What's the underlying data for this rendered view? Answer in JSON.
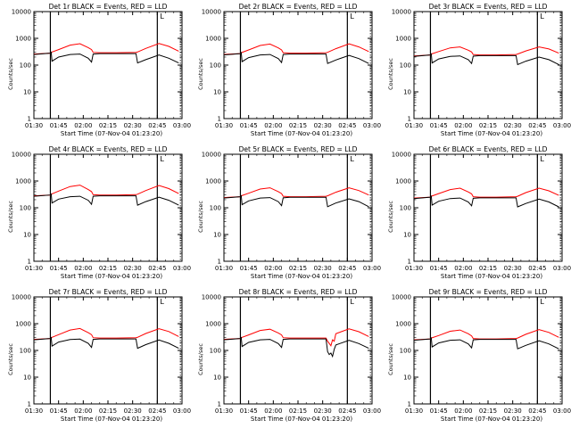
{
  "figure": {
    "xtick_labels": [
      "01:30",
      "01:45",
      "02:00",
      "02:15",
      "02:30",
      "02:45",
      "03:00"
    ],
    "ytick_labels": [
      "1",
      "10",
      "100",
      "1000",
      "10000"
    ],
    "ylabel": "Counts/sec",
    "xlabel": "Start Time (07-Nov-04 01:23:20)",
    "colors": {
      "events": "#000000",
      "lld": "#ff0000",
      "axes": "#000000",
      "background": "#ffffff"
    }
  },
  "chart_data": [
    {
      "type": "line",
      "title": "Det 1r BLACK = Events, RED = LLD",
      "flag": "L",
      "x_unit": "minutes after 01:30",
      "xlim": [
        0,
        90
      ],
      "ylim": [
        1,
        10000
      ],
      "y_scale": "log",
      "vlines": [
        10,
        75,
        89
      ],
      "series": [
        {
          "key": "lld",
          "color": "#ff0000",
          "x": [
            0,
            10,
            10.5,
            15,
            22,
            28,
            33,
            35,
            36,
            40,
            50,
            62,
            63,
            68,
            76,
            82,
            88
          ],
          "y": [
            260,
            280,
            300,
            380,
            560,
            630,
            450,
            380,
            300,
            290,
            290,
            300,
            310,
            420,
            640,
            500,
            330
          ]
        },
        {
          "key": "events",
          "color": "#000000",
          "x": [
            0,
            10,
            10.5,
            11,
            15,
            22,
            28,
            33,
            35,
            36,
            40,
            50,
            62,
            63,
            68,
            76,
            82,
            88
          ],
          "y": [
            250,
            280,
            300,
            140,
            200,
            250,
            260,
            180,
            130,
            260,
            270,
            270,
            270,
            120,
            160,
            240,
            180,
            120
          ]
        }
      ]
    },
    {
      "type": "line",
      "title": "Det 2r BLACK = Events, RED = LLD",
      "flag": "L",
      "x_unit": "minutes after 01:30",
      "xlim": [
        0,
        90
      ],
      "ylim": [
        1,
        10000
      ],
      "y_scale": "log",
      "vlines": [
        10,
        75,
        89
      ],
      "series": [
        {
          "key": "lld",
          "color": "#ff0000",
          "x": [
            0,
            10,
            10.5,
            15,
            22,
            28,
            33,
            35,
            36,
            40,
            50,
            62,
            63,
            68,
            76,
            82,
            88
          ],
          "y": [
            250,
            270,
            290,
            370,
            540,
            610,
            440,
            370,
            290,
            280,
            280,
            290,
            300,
            410,
            620,
            480,
            320
          ]
        },
        {
          "key": "events",
          "color": "#000000",
          "x": [
            0,
            10,
            10.5,
            11,
            15,
            22,
            28,
            33,
            35,
            36,
            40,
            50,
            62,
            63,
            68,
            76,
            82,
            88
          ],
          "y": [
            240,
            270,
            290,
            135,
            190,
            240,
            250,
            175,
            125,
            250,
            260,
            260,
            260,
            115,
            155,
            230,
            175,
            115
          ]
        }
      ]
    },
    {
      "type": "line",
      "title": "Det 3r BLACK = Events, RED = LLD",
      "flag": "L",
      "x_unit": "minutes after 01:30",
      "xlim": [
        0,
        90
      ],
      "ylim": [
        1,
        10000
      ],
      "y_scale": "log",
      "vlines": [
        10,
        75,
        89
      ],
      "series": [
        {
          "key": "lld",
          "color": "#ff0000",
          "x": [
            0,
            10,
            10.5,
            15,
            22,
            28,
            33,
            35,
            36,
            40,
            50,
            62,
            63,
            68,
            76,
            82,
            88
          ],
          "y": [
            220,
            240,
            260,
            320,
            440,
            480,
            360,
            310,
            250,
            240,
            240,
            250,
            260,
            340,
            480,
            400,
            280
          ]
        },
        {
          "key": "events",
          "color": "#000000",
          "x": [
            0,
            10,
            10.5,
            11,
            15,
            22,
            28,
            33,
            35,
            36,
            40,
            50,
            62,
            63,
            68,
            76,
            82,
            88
          ],
          "y": [
            210,
            240,
            260,
            120,
            170,
            210,
            220,
            160,
            115,
            215,
            225,
            225,
            225,
            105,
            140,
            200,
            160,
            105
          ]
        }
      ]
    },
    {
      "type": "line",
      "title": "Det 4r BLACK = Events, RED = LLD",
      "flag": "L",
      "x_unit": "minutes after 01:30",
      "xlim": [
        0,
        90
      ],
      "ylim": [
        1,
        10000
      ],
      "y_scale": "log",
      "vlines": [
        10,
        75,
        89
      ],
      "series": [
        {
          "key": "lld",
          "color": "#ff0000",
          "x": [
            0,
            10,
            10.5,
            15,
            22,
            28,
            33,
            35,
            36,
            40,
            50,
            62,
            63,
            68,
            76,
            82,
            88
          ],
          "y": [
            280,
            300,
            320,
            420,
            620,
            700,
            480,
            400,
            310,
            300,
            300,
            310,
            320,
            440,
            680,
            520,
            340
          ]
        },
        {
          "key": "events",
          "color": "#000000",
          "x": [
            0,
            10,
            10.5,
            11,
            15,
            22,
            28,
            33,
            35,
            36,
            40,
            50,
            62,
            63,
            68,
            76,
            82,
            88
          ],
          "y": [
            270,
            300,
            320,
            150,
            210,
            260,
            270,
            190,
            135,
            270,
            280,
            280,
            280,
            125,
            170,
            250,
            190,
            125
          ]
        }
      ]
    },
    {
      "type": "line",
      "title": "Det 5r BLACK = Events, RED = LLD",
      "flag": "L",
      "x_unit": "minutes after 01:30",
      "xlim": [
        0,
        90
      ],
      "ylim": [
        1,
        10000
      ],
      "y_scale": "log",
      "vlines": [
        10,
        75,
        89
      ],
      "series": [
        {
          "key": "lld",
          "color": "#ff0000",
          "x": [
            0,
            10,
            10.5,
            15,
            22,
            28,
            33,
            35,
            36,
            40,
            50,
            62,
            63,
            68,
            76,
            82,
            88
          ],
          "y": [
            240,
            260,
            280,
            350,
            500,
            560,
            400,
            340,
            270,
            260,
            260,
            270,
            280,
            380,
            560,
            440,
            300
          ]
        },
        {
          "key": "events",
          "color": "#000000",
          "x": [
            0,
            10,
            10.5,
            11,
            15,
            22,
            28,
            33,
            35,
            36,
            40,
            50,
            62,
            63,
            68,
            76,
            82,
            88
          ],
          "y": [
            230,
            260,
            280,
            130,
            180,
            230,
            240,
            170,
            120,
            235,
            245,
            245,
            245,
            110,
            150,
            215,
            170,
            110
          ]
        }
      ]
    },
    {
      "type": "line",
      "title": "Det 6r BLACK = Events, RED = LLD",
      "flag": "L",
      "x_unit": "minutes after 01:30",
      "xlim": [
        0,
        90
      ],
      "ylim": [
        1,
        10000
      ],
      "y_scale": "log",
      "vlines": [
        10,
        75,
        89
      ],
      "series": [
        {
          "key": "lld",
          "color": "#ff0000",
          "x": [
            0,
            10,
            10.5,
            15,
            22,
            28,
            33,
            35,
            36,
            40,
            50,
            62,
            63,
            68,
            76,
            82,
            88
          ],
          "y": [
            230,
            250,
            270,
            340,
            480,
            540,
            390,
            330,
            260,
            250,
            250,
            260,
            270,
            370,
            540,
            430,
            290
          ]
        },
        {
          "key": "events",
          "color": "#000000",
          "x": [
            0,
            10,
            10.5,
            11,
            15,
            22,
            28,
            33,
            35,
            36,
            40,
            50,
            62,
            63,
            68,
            76,
            82,
            88
          ],
          "y": [
            220,
            250,
            270,
            125,
            175,
            220,
            230,
            165,
            118,
            225,
            235,
            235,
            235,
            108,
            145,
            210,
            165,
            108
          ]
        }
      ]
    },
    {
      "type": "line",
      "title": "Det 7r BLACK = Events, RED = LLD",
      "flag": "L",
      "x_unit": "minutes after 01:30",
      "xlim": [
        0,
        90
      ],
      "ylim": [
        1,
        10000
      ],
      "y_scale": "log",
      "vlines": [
        10,
        75,
        89
      ],
      "series": [
        {
          "key": "lld",
          "color": "#ff0000",
          "x": [
            0,
            10,
            10.5,
            15,
            22,
            28,
            33,
            35,
            36,
            40,
            50,
            62,
            63,
            68,
            76,
            82,
            88
          ],
          "y": [
            260,
            280,
            300,
            390,
            580,
            660,
            460,
            390,
            300,
            290,
            290,
            300,
            310,
            430,
            650,
            510,
            330
          ]
        },
        {
          "key": "events",
          "color": "#000000",
          "x": [
            0,
            10,
            10.5,
            11,
            15,
            22,
            28,
            33,
            35,
            36,
            40,
            50,
            62,
            63,
            68,
            76,
            82,
            88
          ],
          "y": [
            250,
            280,
            300,
            145,
            205,
            255,
            265,
            185,
            130,
            260,
            270,
            270,
            270,
            120,
            165,
            245,
            185,
            120
          ]
        }
      ]
    },
    {
      "type": "line",
      "title": "Det 8r BLACK = Events, RED = LLD",
      "flag": "L",
      "x_unit": "minutes after 01:30",
      "xlim": [
        0,
        90
      ],
      "ylim": [
        1,
        10000
      ],
      "y_scale": "log",
      "vlines": [
        10,
        75,
        89
      ],
      "series": [
        {
          "key": "lld",
          "color": "#ff0000",
          "x": [
            0,
            10,
            10.5,
            15,
            22,
            28,
            33,
            35,
            36,
            40,
            50,
            62,
            63,
            65,
            66,
            67,
            68,
            76,
            82,
            88
          ],
          "y": [
            260,
            280,
            300,
            380,
            560,
            620,
            450,
            380,
            300,
            290,
            290,
            290,
            220,
            150,
            250,
            220,
            420,
            640,
            500,
            330
          ]
        },
        {
          "key": "events",
          "color": "#000000",
          "x": [
            0,
            10,
            10.5,
            11,
            15,
            22,
            28,
            33,
            35,
            36,
            40,
            50,
            62,
            63,
            64,
            65,
            66,
            67,
            68,
            76,
            82,
            88
          ],
          "y": [
            250,
            280,
            300,
            140,
            200,
            250,
            260,
            180,
            130,
            260,
            270,
            270,
            270,
            90,
            70,
            80,
            60,
            110,
            160,
            240,
            180,
            120
          ]
        }
      ]
    },
    {
      "type": "line",
      "title": "Det 9r BLACK = Events, RED = LLD",
      "flag": "L",
      "x_unit": "minutes after 01:30",
      "xlim": [
        0,
        90
      ],
      "ylim": [
        1,
        10000
      ],
      "y_scale": "log",
      "vlines": [
        10,
        75,
        89
      ],
      "series": [
        {
          "key": "lld",
          "color": "#ff0000",
          "x": [
            0,
            10,
            10.5,
            15,
            22,
            28,
            33,
            35,
            36,
            40,
            50,
            62,
            63,
            68,
            76,
            82,
            88
          ],
          "y": [
            250,
            270,
            290,
            360,
            520,
            580,
            420,
            350,
            280,
            270,
            270,
            280,
            290,
            400,
            600,
            470,
            310
          ]
        },
        {
          "key": "events",
          "color": "#000000",
          "x": [
            0,
            10,
            10.5,
            11,
            15,
            22,
            28,
            33,
            35,
            36,
            40,
            50,
            62,
            63,
            68,
            76,
            82,
            88
          ],
          "y": [
            240,
            270,
            290,
            135,
            190,
            240,
            250,
            175,
            125,
            250,
            260,
            260,
            260,
            115,
            155,
            230,
            175,
            115
          ]
        }
      ]
    }
  ]
}
